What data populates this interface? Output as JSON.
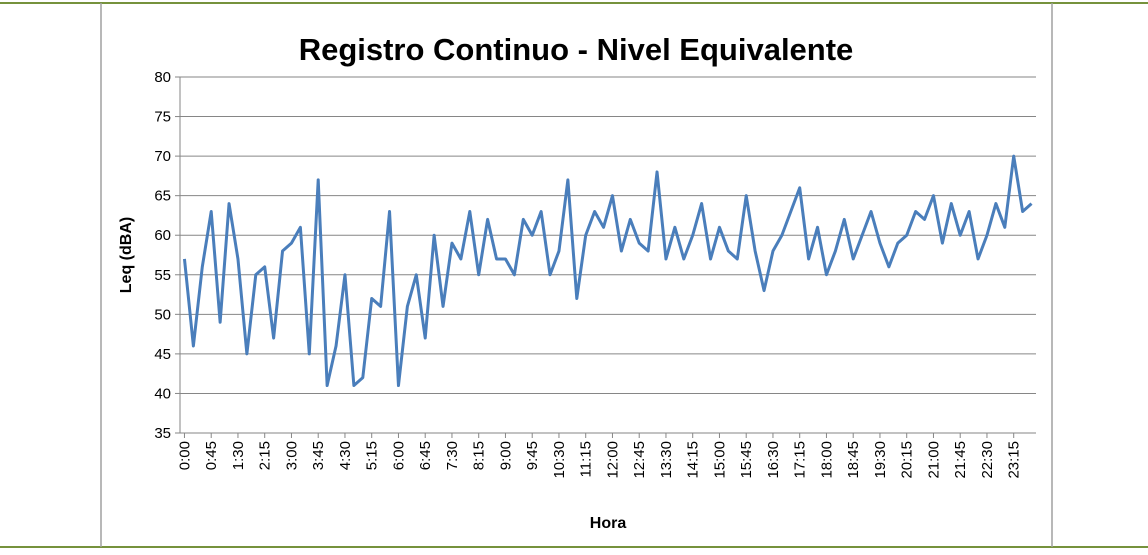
{
  "chart_data": {
    "type": "line",
    "title": "Registro Continuo - Nivel Equivalente",
    "x_label": "Hora",
    "y_label": "Leq (dBA)",
    "categories": [
      "0:00",
      null,
      null,
      "0:45",
      null,
      null,
      "1:30",
      null,
      null,
      "2:15",
      null,
      null,
      "3:00",
      null,
      null,
      "3:45",
      null,
      null,
      "4:30",
      null,
      null,
      "5:15",
      null,
      null,
      "6:00",
      null,
      null,
      "6:45",
      null,
      null,
      "7:30",
      null,
      null,
      "8:15",
      null,
      null,
      "9:00",
      null,
      null,
      "9:45",
      null,
      null,
      "10:30",
      null,
      null,
      "11:15",
      null,
      null,
      "12:00",
      null,
      null,
      "12:45",
      null,
      null,
      "13:30",
      null,
      null,
      "14:15",
      null,
      null,
      "15:00",
      null,
      null,
      "15:45",
      null,
      null,
      "16:30",
      null,
      null,
      "17:15",
      null,
      null,
      "18:00",
      null,
      null,
      "18:45",
      null,
      null,
      "19:30",
      null,
      null,
      "20:15",
      null,
      null,
      "21:00",
      null,
      null,
      "21:45",
      null,
      null,
      "22:30",
      null,
      null,
      "23:15",
      null,
      null
    ],
    "series": [
      {
        "name": "Leq",
        "color": "#4a7ebb",
        "values": [
          57,
          46,
          56,
          63,
          49,
          64,
          57,
          45,
          55,
          56,
          47,
          58,
          59,
          61,
          45,
          67,
          41,
          46,
          55,
          41,
          42,
          52,
          51,
          63,
          41,
          51,
          55,
          47,
          60,
          51,
          59,
          57,
          63,
          55,
          62,
          57,
          57,
          55,
          62,
          60,
          63,
          55,
          58,
          67,
          52,
          60,
          63,
          61,
          65,
          58,
          62,
          59,
          58,
          68,
          57,
          61,
          57,
          60,
          64,
          57,
          61,
          58,
          57,
          65,
          58,
          53,
          58,
          60,
          63,
          66,
          57,
          61,
          55,
          58,
          62,
          57,
          60,
          63,
          59,
          56,
          59,
          60,
          63,
          62,
          65,
          59,
          64,
          60,
          63,
          57,
          60,
          64,
          61,
          70,
          63,
          64
        ]
      }
    ],
    "ylim": [
      35,
      80
    ],
    "yticks": [
      35,
      40,
      45,
      50,
      55,
      60,
      65,
      70,
      75,
      80
    ],
    "grid": true
  }
}
